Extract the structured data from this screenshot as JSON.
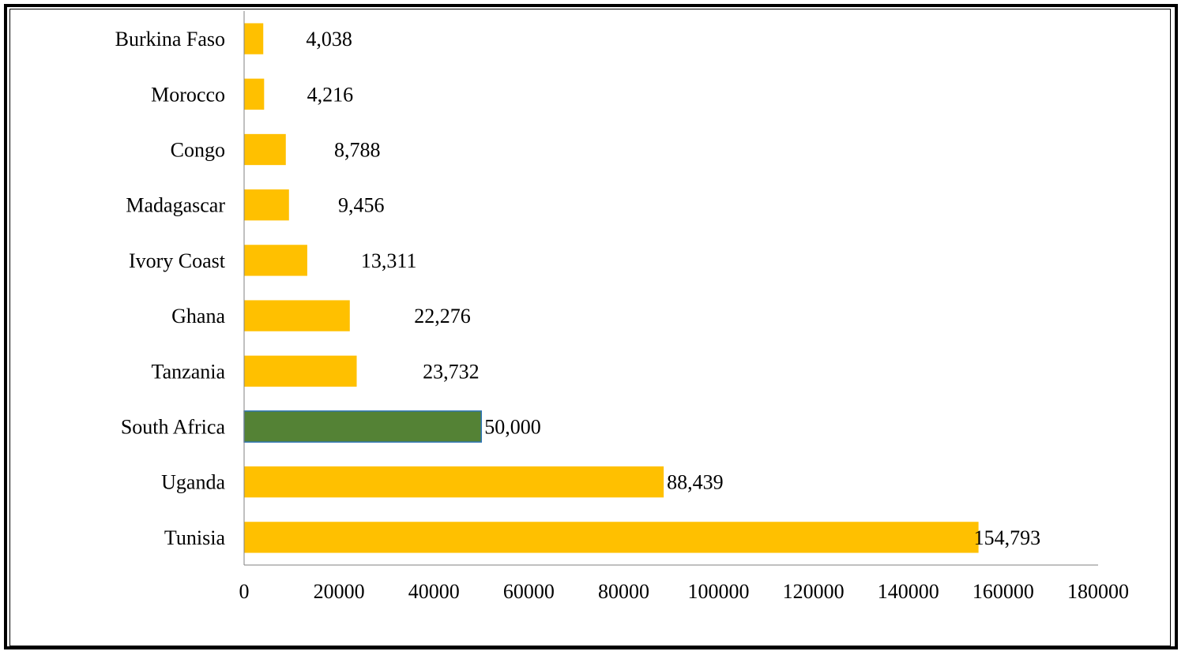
{
  "chart_data": {
    "type": "bar",
    "orientation": "horizontal",
    "title": "",
    "xlabel": "",
    "ylabel": "",
    "categories": [
      "Burkina Faso",
      "Morocco",
      "Congo",
      "Madagascar",
      "Ivory Coast",
      "Ghana",
      "Tanzania",
      "South Africa",
      "Uganda",
      "Tunisia"
    ],
    "values": [
      4038,
      4216,
      8788,
      9456,
      13311,
      22276,
      23732,
      50000,
      88439,
      154793
    ],
    "data_labels": [
      "4,038",
      "4,216",
      "8,788",
      "9,456",
      "13,311",
      "22,276",
      "23,732",
      "50,000",
      "88,439",
      "154,793"
    ],
    "highlight_category": "South Africa",
    "xlim": [
      0,
      180000
    ],
    "x_ticks": [
      0,
      20000,
      40000,
      60000,
      80000,
      100000,
      120000,
      140000,
      160000,
      180000
    ],
    "x_tick_labels": [
      "0",
      "20000",
      "40000",
      "60000",
      "80000",
      "100000",
      "120000",
      "140000",
      "160000",
      "180000"
    ],
    "grid": false,
    "legend": "none",
    "colors": {
      "bar": "#FFC000",
      "highlight": "#548235",
      "highlight_border": "#2E75B6",
      "axis": "#808080",
      "text": "#000000"
    }
  }
}
